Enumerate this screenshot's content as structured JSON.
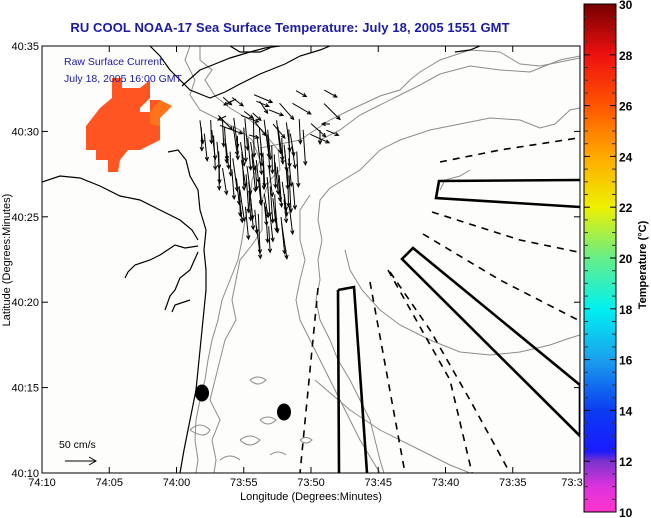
{
  "title": "RU COOL  NOAA-17  Sea Surface Temperature:  July 18, 2005 1551 GMT",
  "annotation": {
    "line1": "Raw Surface Current:",
    "line2": "July 18, 2005 16:00 GMT"
  },
  "scale_vector": {
    "label": "50 cm/s"
  },
  "axes": {
    "xlabel": "Longitude (Degrees:Minutes)",
    "ylabel": "Latitude (Degrees:Minutes)",
    "x_ticks": [
      "74:10",
      "74:05",
      "74:00",
      "73:55",
      "73:50",
      "73:45",
      "73:40",
      "73:35",
      "73:3"
    ],
    "y_ticks": [
      "40:35",
      "40:30",
      "40:25",
      "40:20",
      "40:15",
      "40:10"
    ],
    "x_range": [
      "74:10",
      "73:30"
    ],
    "y_range": [
      "40:10",
      "40:35"
    ]
  },
  "colorbar": {
    "label": "Temperature (°C)",
    "ticks": [
      "30",
      "28",
      "26",
      "24",
      "22",
      "20",
      "18",
      "16",
      "14",
      "12",
      "10"
    ],
    "min": 10,
    "max": 30,
    "stops": [
      {
        "value": 10,
        "color": "#ff33cc"
      },
      {
        "value": 11,
        "color": "#dd33dd"
      },
      {
        "value": 12,
        "color": "#7a33cc"
      },
      {
        "value": 12.4,
        "color": "#1a1aff"
      },
      {
        "value": 14,
        "color": "#0a3cf0"
      },
      {
        "value": 16,
        "color": "#1aa0ee"
      },
      {
        "value": 18,
        "color": "#00f0f0"
      },
      {
        "value": 20,
        "color": "#66ee88"
      },
      {
        "value": 22,
        "color": "#eef000"
      },
      {
        "value": 24,
        "color": "#ffaa00"
      },
      {
        "value": 26,
        "color": "#ff5500"
      },
      {
        "value": 28,
        "color": "#ee1010"
      },
      {
        "value": 30,
        "color": "#770000"
      }
    ]
  },
  "colors": {
    "title": "#1a1aa6",
    "annotation": "#1a1aa6",
    "sst_patch": "#ff5522",
    "coastline": "#000000",
    "bathymetry": "#8c8c8c"
  },
  "chart_data": {
    "type": "heatmap",
    "title": "RU COOL  NOAA-17  Sea Surface Temperature:  July 18, 2005 1551 GMT",
    "xlabel": "Longitude (Degrees:Minutes)",
    "ylabel": "Latitude (Degrees:Minutes)",
    "colorbar_label": "Temperature (°C)",
    "clim": [
      10,
      30
    ],
    "sst_patch": {
      "approx_temperature_c": 26.5,
      "location": "upper-left, near 74:07 W 40:30 N"
    },
    "current_vectors": {
      "label": "Raw Surface Current",
      "time": "July 18, 2005 16:00 GMT",
      "scale": "50 cm/s",
      "dominant_direction": "south-southeast"
    }
  }
}
